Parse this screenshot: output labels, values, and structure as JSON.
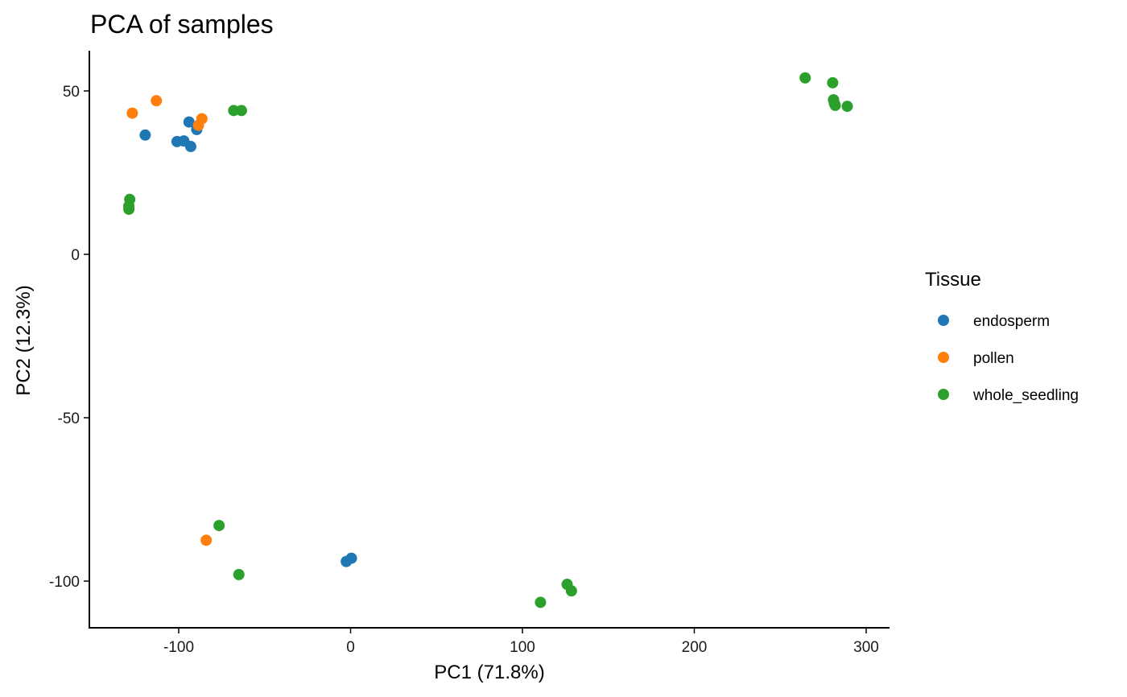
{
  "chart_data": {
    "type": "scatter",
    "title": "PCA of samples",
    "xlabel": "PC1 (71.8%)",
    "ylabel": "PC2 (12.3%)",
    "xlim": [
      -150,
      310
    ],
    "ylim": [
      -114,
      62
    ],
    "xticks": [
      -100,
      0,
      100,
      200,
      300
    ],
    "yticks": [
      50,
      0,
      -50,
      -100
    ],
    "xtick_labels": [
      "-100",
      "0",
      "100",
      "200",
      "300"
    ],
    "ytick_labels": [
      "50",
      "0",
      "-50",
      "-100"
    ],
    "grid": false,
    "legend": {
      "title": "Tissue",
      "position": "right"
    },
    "series": [
      {
        "name": "endosperm",
        "color": "#1f77b4",
        "points": [
          {
            "x": -119.5,
            "y": 36.5
          },
          {
            "x": -101,
            "y": 34.5
          },
          {
            "x": -97,
            "y": 34.7
          },
          {
            "x": -94,
            "y": 40.5
          },
          {
            "x": -93,
            "y": 33
          },
          {
            "x": -89.5,
            "y": 38.2
          },
          {
            "x": -2.5,
            "y": -94
          },
          {
            "x": 0.5,
            "y": -93
          }
        ]
      },
      {
        "name": "pollen",
        "color": "#ff7f0e",
        "points": [
          {
            "x": -127,
            "y": 43.2
          },
          {
            "x": -113,
            "y": 47
          },
          {
            "x": -88.5,
            "y": 39.5
          },
          {
            "x": -86.5,
            "y": 41.5
          },
          {
            "x": -84,
            "y": -87.5
          }
        ]
      },
      {
        "name": "whole_seedling",
        "color": "#2ca02c",
        "points": [
          {
            "x": -128.5,
            "y": 16.8
          },
          {
            "x": -129,
            "y": 14.8
          },
          {
            "x": -129,
            "y": 13.8
          },
          {
            "x": -68,
            "y": 44
          },
          {
            "x": -63.5,
            "y": 44
          },
          {
            "x": -76.5,
            "y": -83
          },
          {
            "x": -65,
            "y": -98
          },
          {
            "x": 110.5,
            "y": -106.5
          },
          {
            "x": 126,
            "y": -101
          },
          {
            "x": 128.5,
            "y": -103
          },
          {
            "x": 264.5,
            "y": 54
          },
          {
            "x": 280.5,
            "y": 52.5
          },
          {
            "x": 281,
            "y": 47.3
          },
          {
            "x": 281.5,
            "y": 46.2
          },
          {
            "x": 282,
            "y": 45.6
          },
          {
            "x": 289,
            "y": 45.3
          }
        ]
      }
    ]
  }
}
